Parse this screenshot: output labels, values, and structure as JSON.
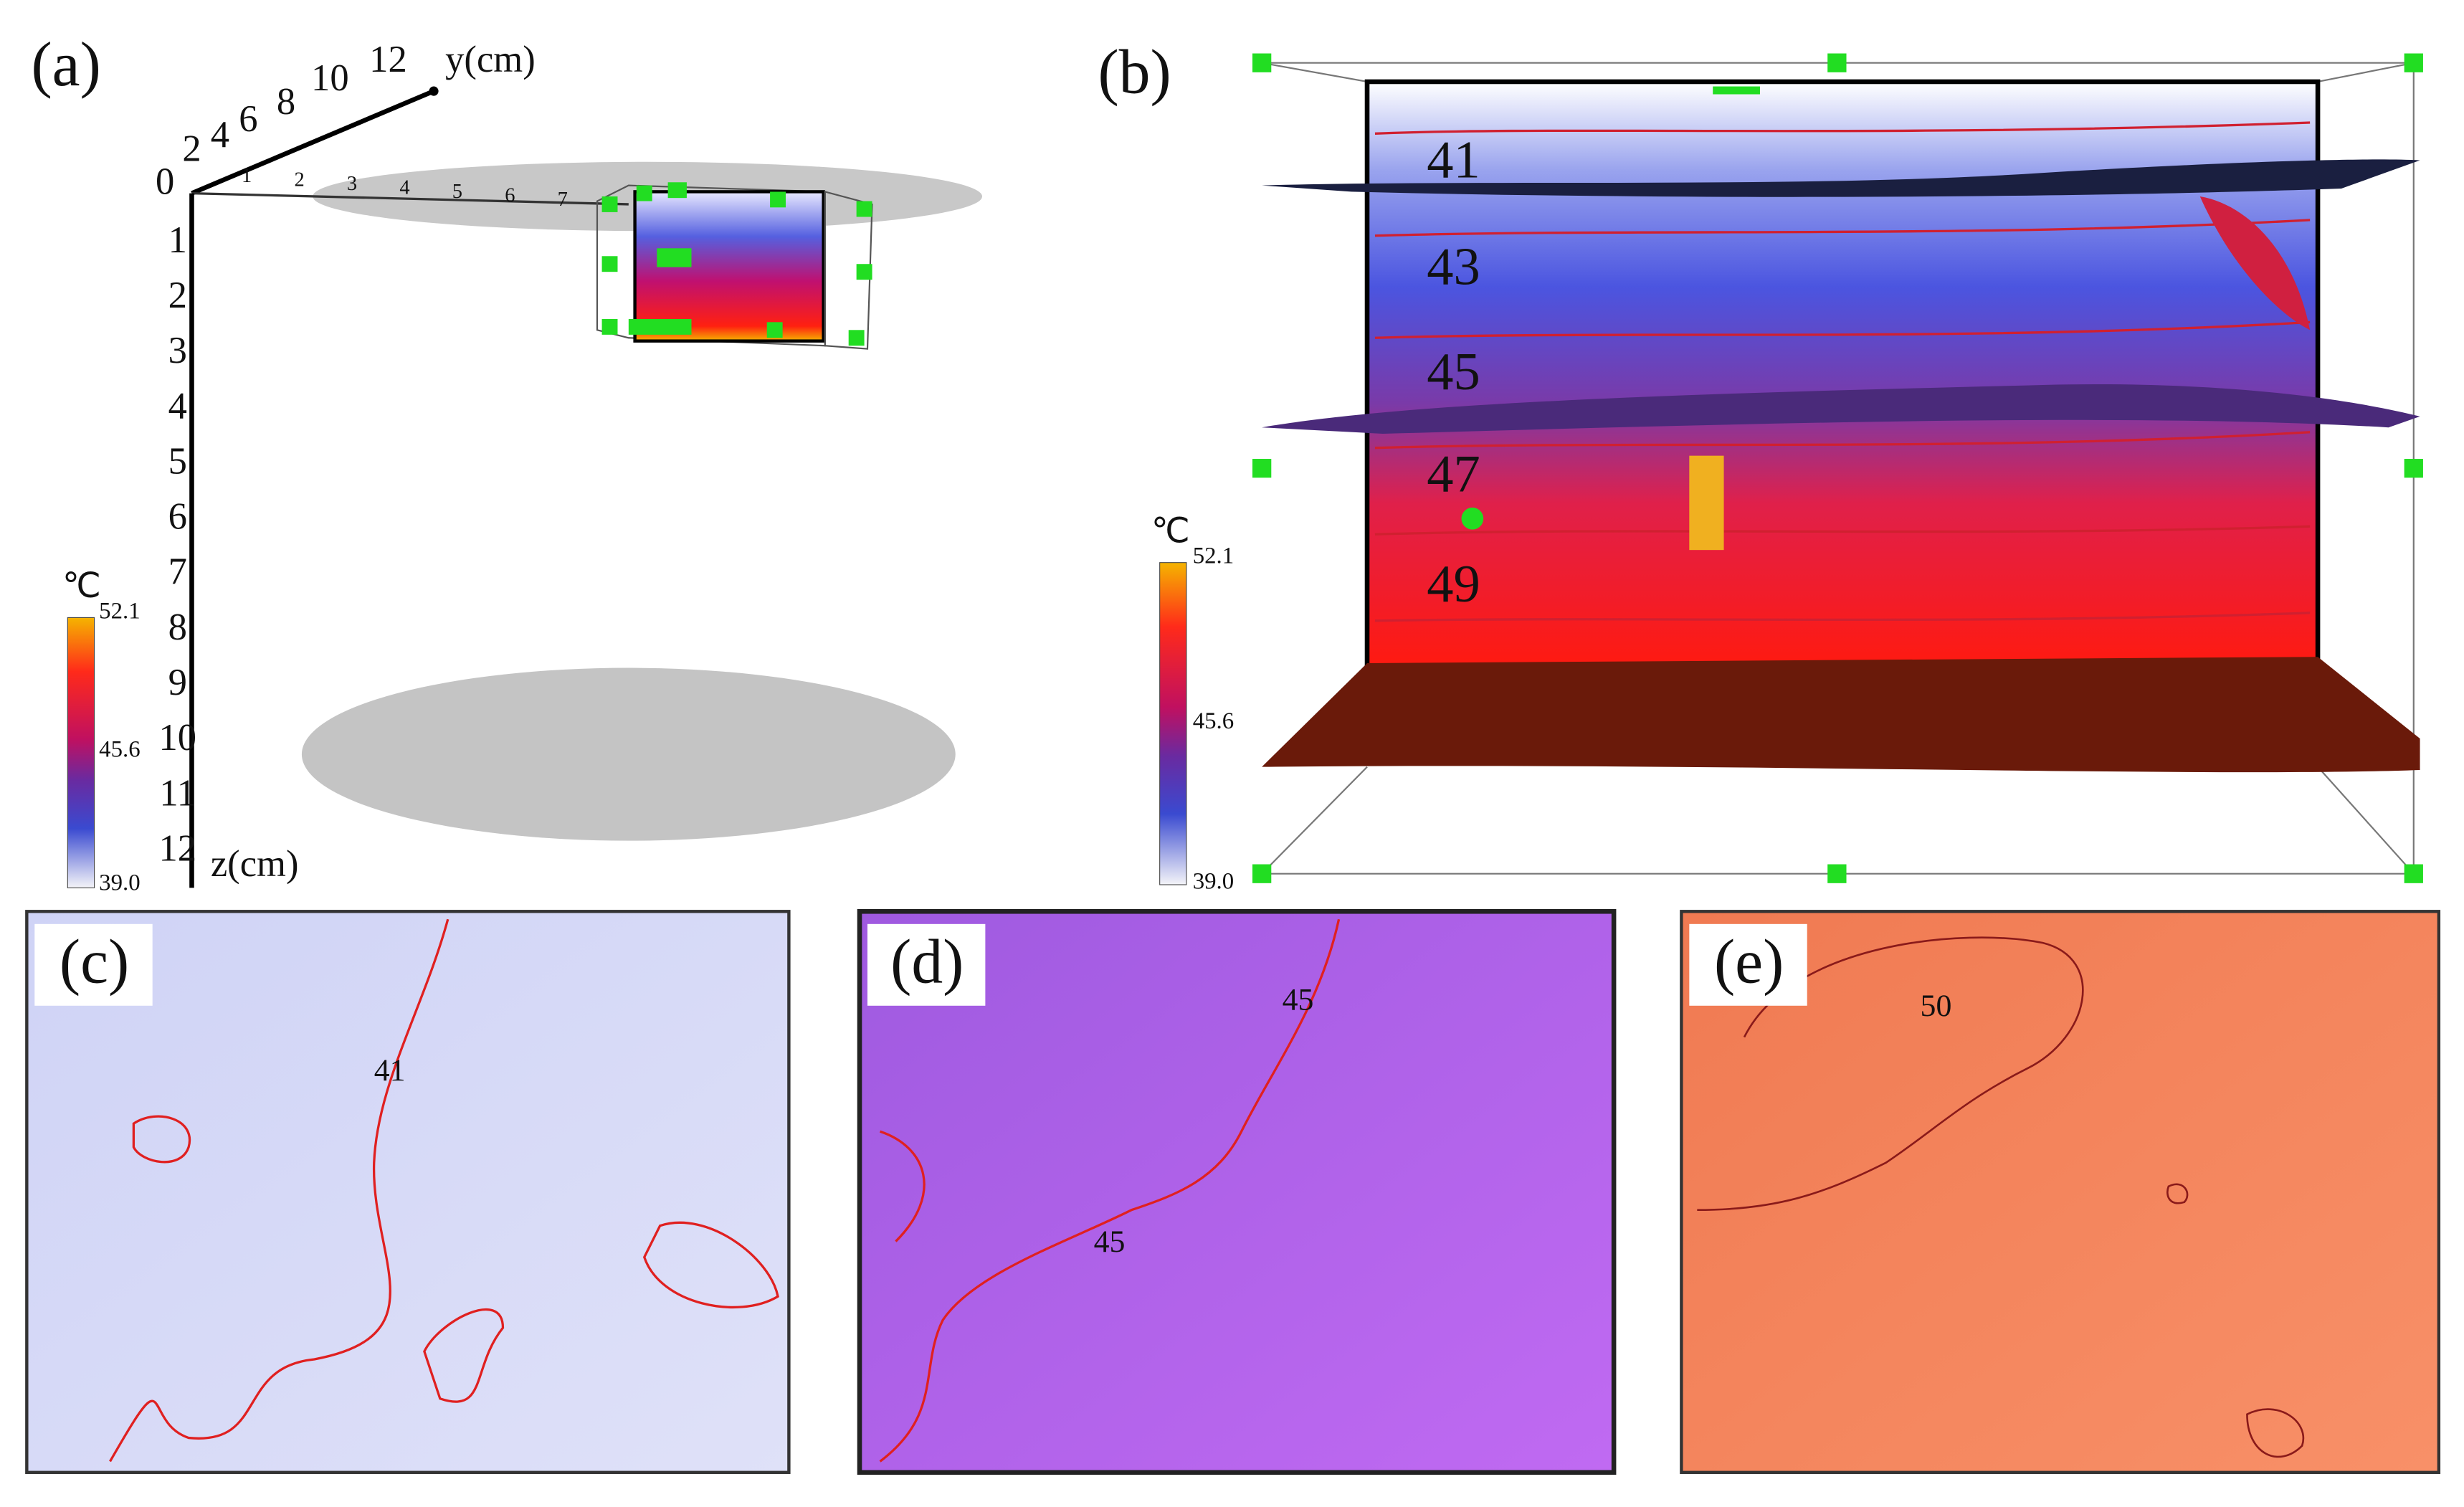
{
  "panel_a": {
    "label": "(a)",
    "y_axis": {
      "title": "y(cm)",
      "ticks": [
        "0",
        "2",
        "4",
        "6",
        "8",
        "10",
        "12"
      ]
    },
    "x_ticks": [
      "1",
      "2",
      "3",
      "4",
      "5",
      "6",
      "7"
    ],
    "z_axis": {
      "title": "z(cm)",
      "ticks": [
        "1",
        "2",
        "3",
        "4",
        "5",
        "6",
        "7",
        "8",
        "9",
        "10",
        "11",
        "12"
      ]
    },
    "colorbar": {
      "unit": "℃",
      "labels": [
        "52.1",
        "45.6",
        "39.0"
      ]
    }
  },
  "panel_b": {
    "label": "(b)",
    "contour_labels": [
      "41",
      "43",
      "45",
      "47",
      "49"
    ],
    "colorbar": {
      "unit": "℃",
      "labels": [
        "52.1",
        "45.6",
        "39.0"
      ]
    }
  },
  "panel_c": {
    "label": "(c)",
    "contour_labels": [
      "41"
    ]
  },
  "panel_d": {
    "label": "(d)",
    "contour_labels": [
      "45",
      "45"
    ]
  },
  "panel_e": {
    "label": "(e)",
    "contour_labels": [
      "50"
    ]
  }
}
